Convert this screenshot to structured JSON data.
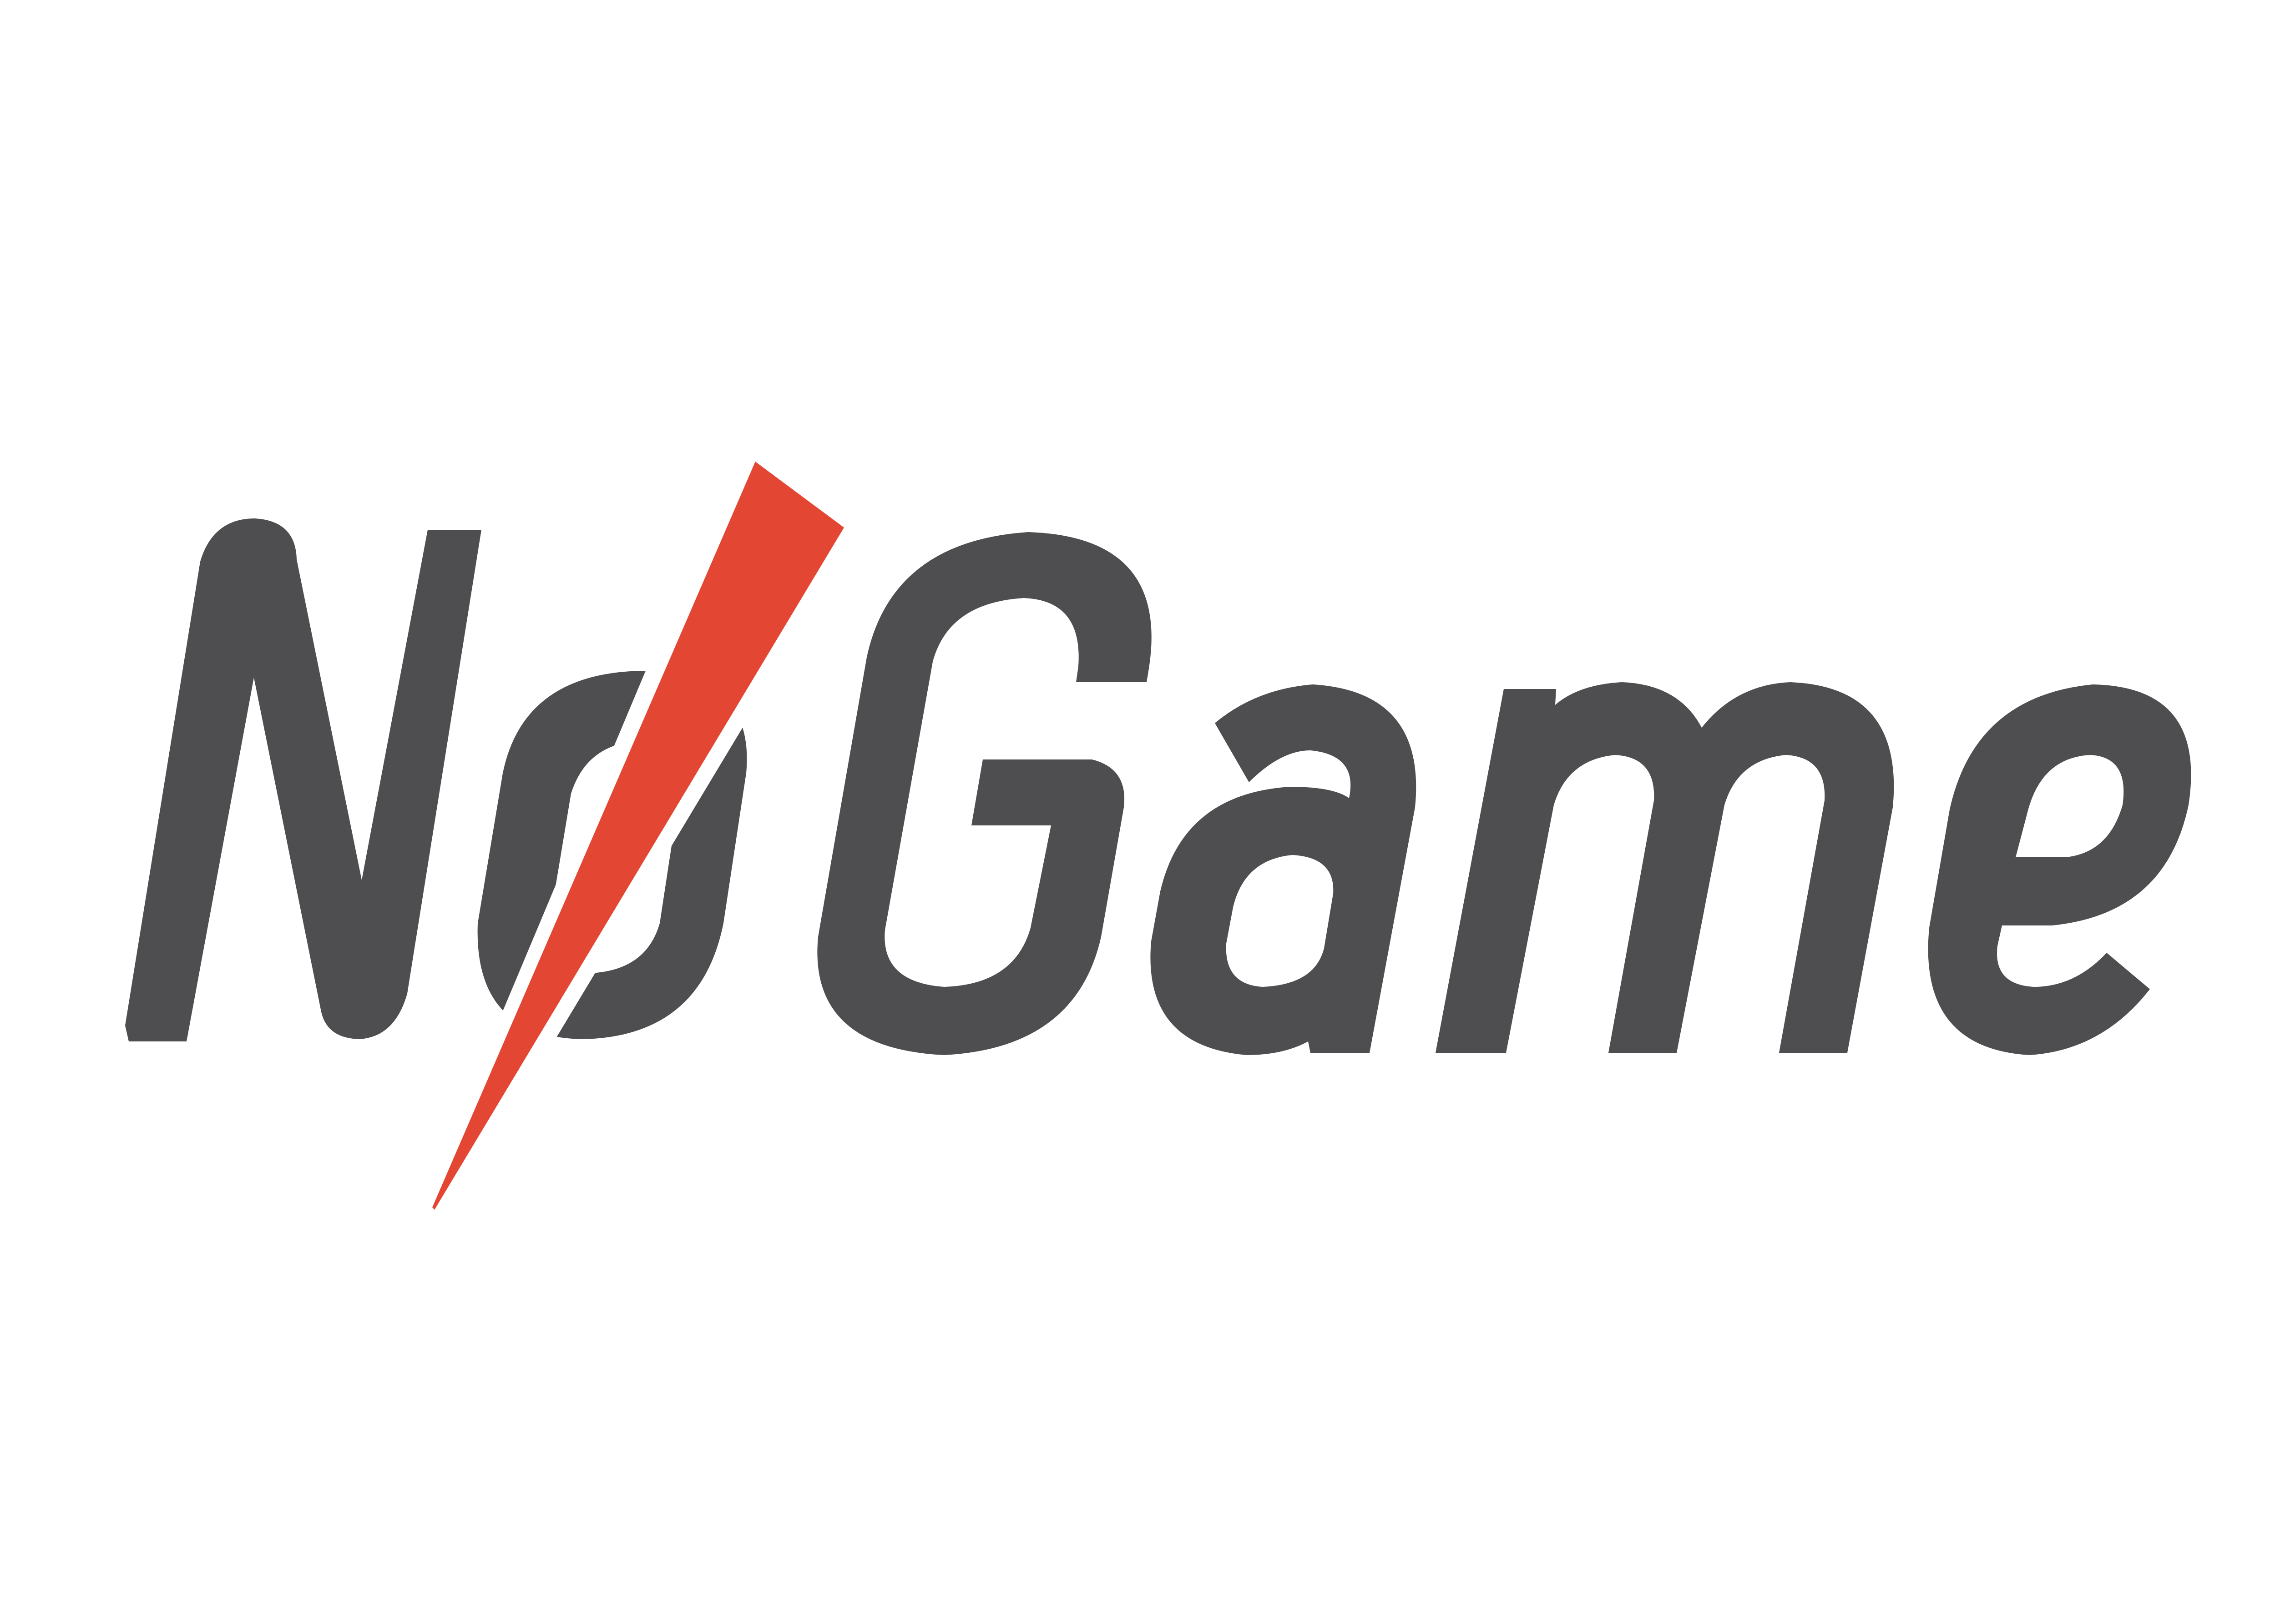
{
  "logo": {
    "wordmark": "NoGame",
    "colors": {
      "background": "#ffffff",
      "letters": "#4e4e50",
      "slash": "#e34733"
    }
  }
}
